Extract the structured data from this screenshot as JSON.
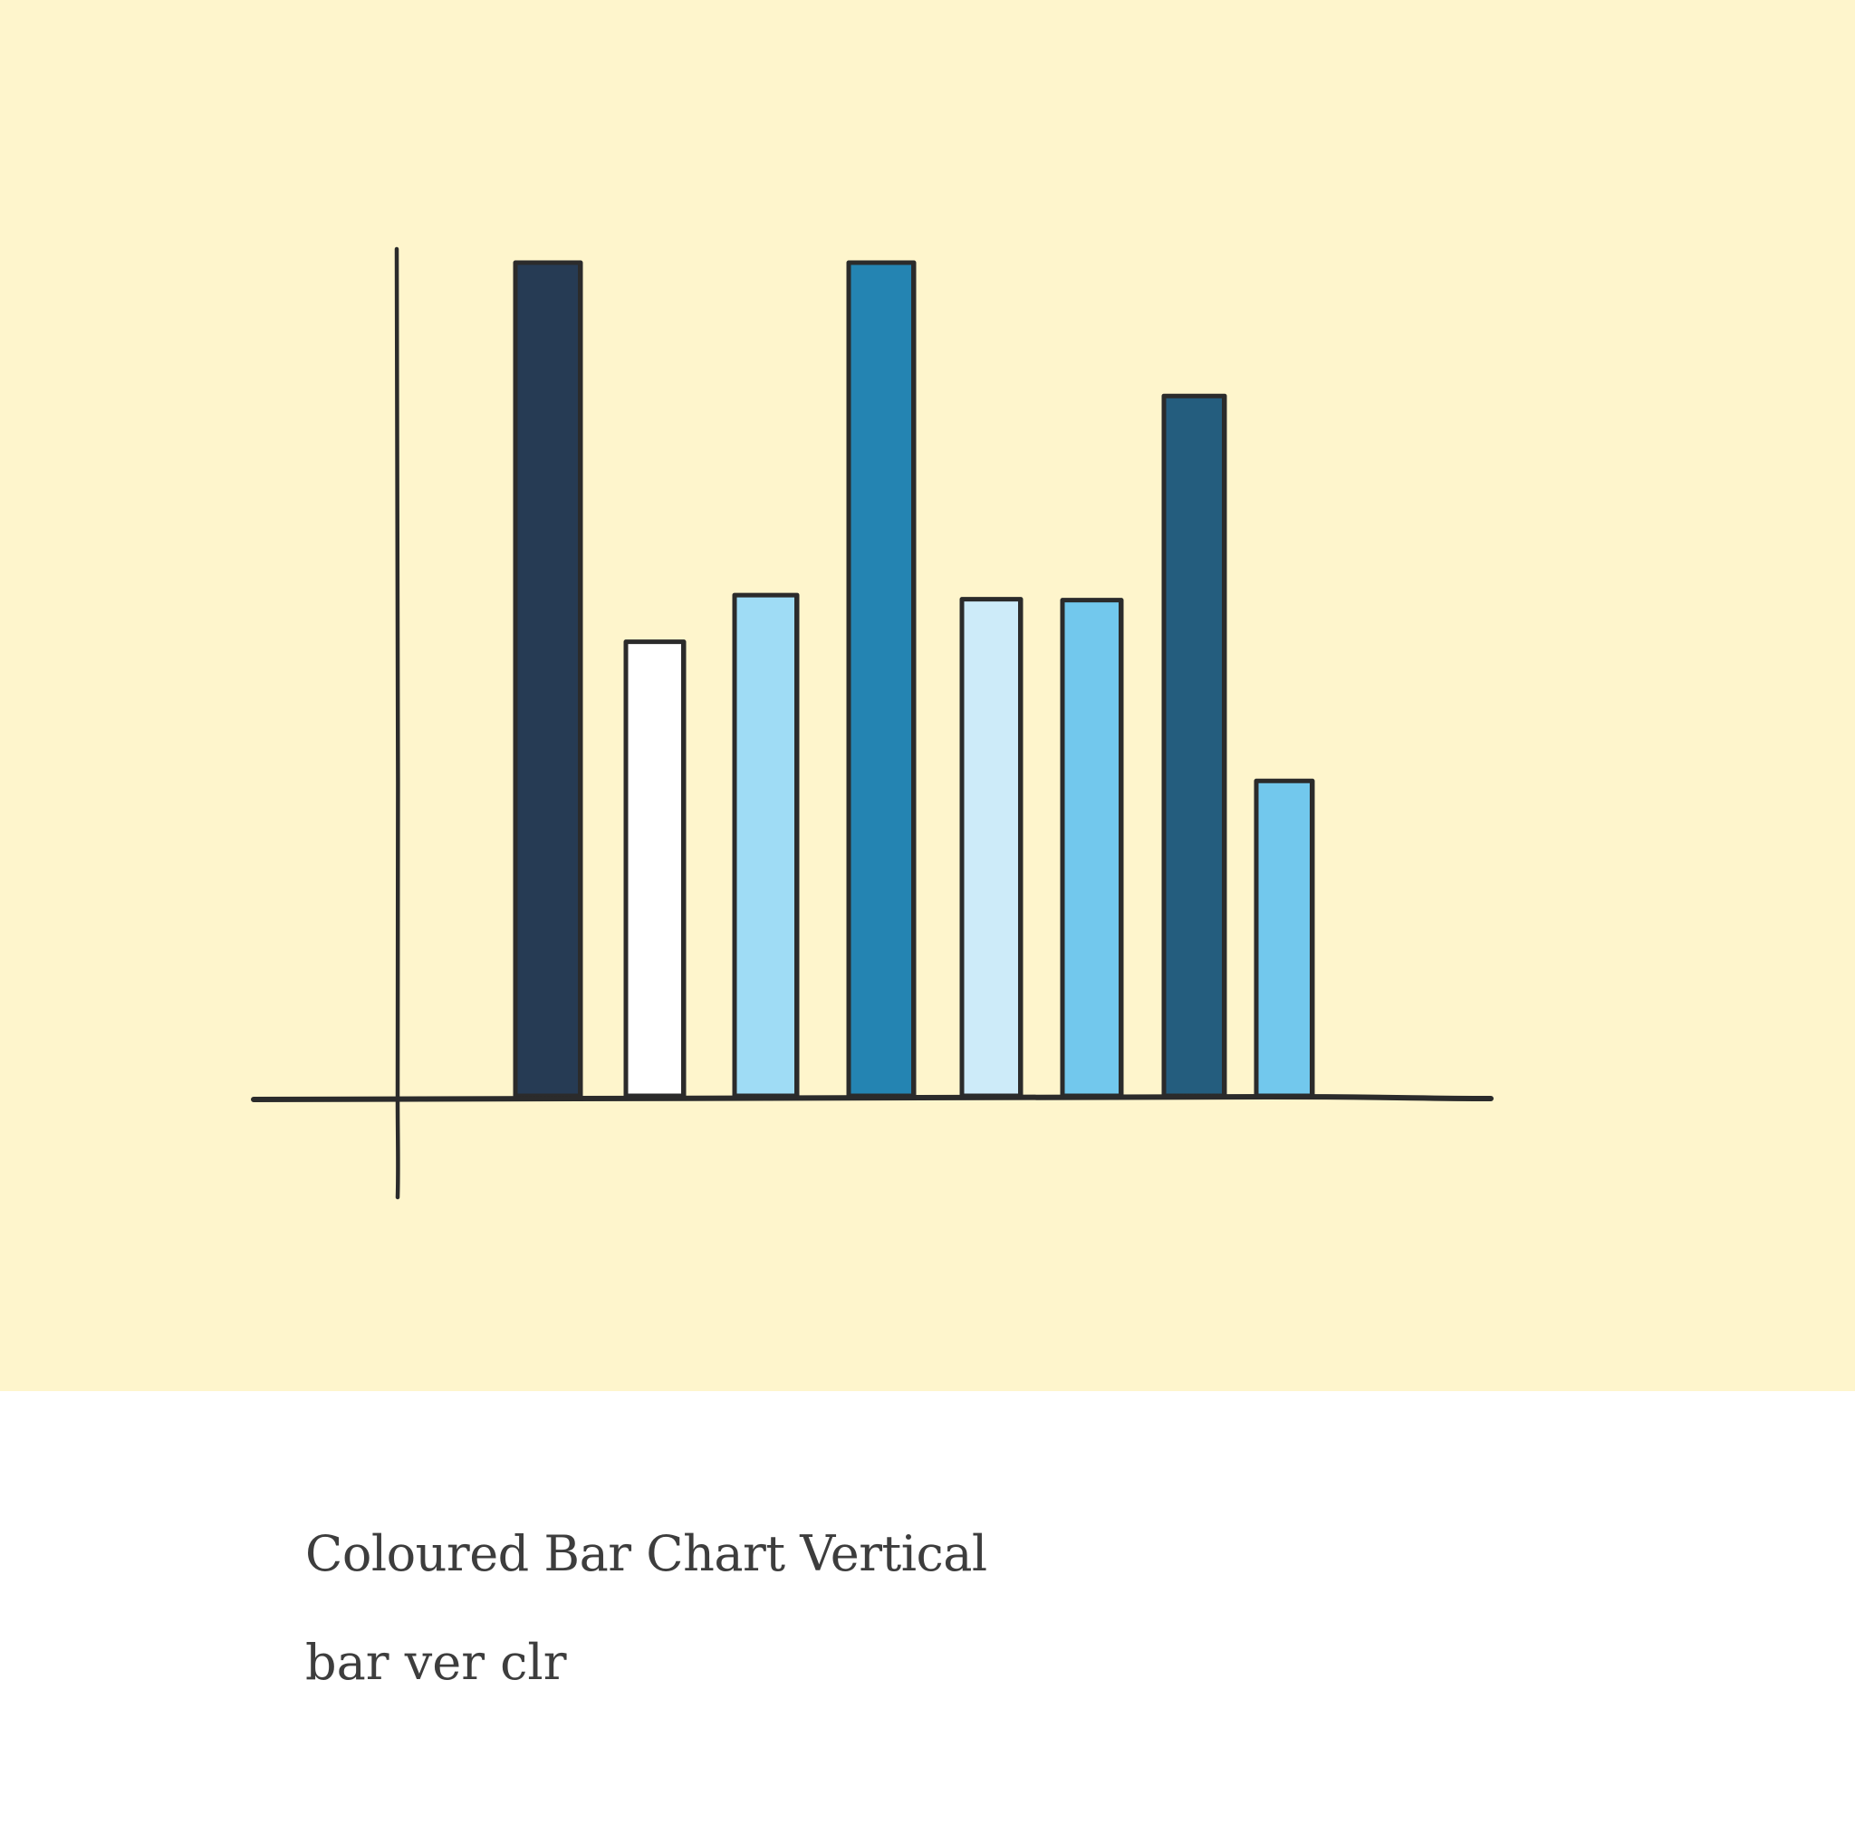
{
  "chart_data": {
    "type": "bar",
    "values": [
      100,
      54.5,
      60.1,
      100,
      59.6,
      59.5,
      84,
      37.8
    ],
    "colors": [
      "#263b54",
      "#ffffff",
      "#9fdcf5",
      "#2484b2",
      "#cdebf9",
      "#72c8ed",
      "#245d7e",
      "#72c8ed"
    ],
    "ylim": [
      0,
      100
    ],
    "grid": false,
    "legend": "none"
  },
  "caption": {
    "title": "Coloured Bar Chart Vertical",
    "tags": "bar ver clr"
  }
}
